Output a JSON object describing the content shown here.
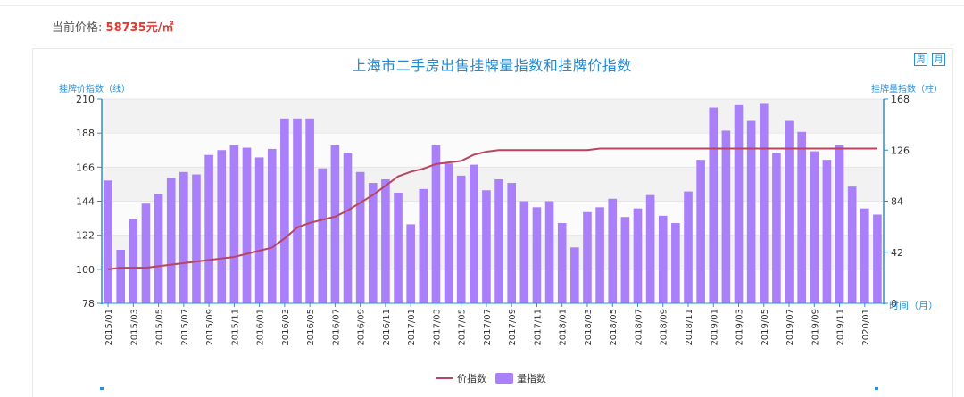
{
  "price": {
    "label": "当前价格:",
    "value": "58735元/㎡"
  },
  "period_buttons": [
    "周",
    "月"
  ],
  "colors": {
    "bar": "#a97ffa",
    "line": "#b84562",
    "axis": "#2a8fd8",
    "title": "#1f8ad6",
    "price": "#e8382f"
  },
  "chart_data": {
    "type": "bar+line",
    "title": "上海市二手房出售挂牌量指数和挂牌价指数",
    "y_left_label": "挂牌价指数（线）",
    "y_right_label": "挂牌量指数（柱）",
    "x_axis_label": "时间（月）",
    "y_left_ticks": [
      78,
      100,
      122,
      144,
      166,
      188,
      210
    ],
    "y_right_ticks": [
      0,
      42,
      84,
      126,
      168
    ],
    "y_left_range": [
      78,
      210
    ],
    "y_right_range": [
      0,
      168
    ],
    "x_tick_labels": [
      "2015/01",
      "2015/03",
      "2015/05",
      "2015/07",
      "2015/09",
      "2015/11",
      "2016/01",
      "2016/03",
      "2016/05",
      "2016/07",
      "2016/09",
      "2016/11",
      "2017/01",
      "2017/03",
      "2017/05",
      "2017/07",
      "2017/09",
      "2017/11",
      "2018/01",
      "2018/03",
      "2018/05",
      "2018/07",
      "2018/09",
      "2018/11",
      "2019/01",
      "2019/03",
      "2019/05",
      "2019/07",
      "2019/09",
      "2019/11",
      "2020/01"
    ],
    "months": [
      "2015/01",
      "2015/02",
      "2015/03",
      "2015/04",
      "2015/05",
      "2015/06",
      "2015/07",
      "2015/08",
      "2015/09",
      "2015/10",
      "2015/11",
      "2015/12",
      "2016/01",
      "2016/02",
      "2016/03",
      "2016/04",
      "2016/05",
      "2016/06",
      "2016/07",
      "2016/08",
      "2016/09",
      "2016/10",
      "2016/11",
      "2016/12",
      "2017/01",
      "2017/02",
      "2017/03",
      "2017/04",
      "2017/05",
      "2017/06",
      "2017/07",
      "2017/08",
      "2017/09",
      "2017/10",
      "2017/11",
      "2017/12",
      "2018/01",
      "2018/02",
      "2018/03",
      "2018/04",
      "2018/05",
      "2018/06",
      "2018/07",
      "2018/08",
      "2018/09",
      "2018/10",
      "2018/11",
      "2018/12",
      "2019/01",
      "2019/02",
      "2019/03",
      "2019/04",
      "2019/05",
      "2019/06",
      "2019/07",
      "2019/08",
      "2019/09",
      "2019/10",
      "2019/11",
      "2019/12",
      "2020/01",
      "2020/02"
    ],
    "series": [
      {
        "name": "量指数",
        "kind": "bar",
        "axis": "right",
        "values": [
          101,
          44,
          69,
          82,
          90,
          103,
          108,
          106,
          122,
          126,
          130,
          128,
          120,
          127,
          152,
          152,
          152,
          111,
          130,
          124,
          108,
          99,
          102,
          91,
          65,
          94,
          130,
          115,
          105,
          114,
          93,
          102,
          99,
          84,
          79,
          84,
          66,
          46,
          75,
          79,
          86,
          71,
          78,
          89,
          72,
          66,
          92,
          118,
          161,
          142,
          163,
          150,
          164,
          124,
          150,
          141,
          125,
          118,
          130,
          96,
          78,
          73
        ]
      },
      {
        "name": "价指数",
        "kind": "line",
        "axis": "left",
        "values": [
          100,
          101,
          101,
          101,
          102,
          103,
          104,
          105,
          106,
          107,
          108,
          110,
          112,
          114,
          120,
          127,
          130,
          132,
          134,
          138,
          143,
          148,
          154,
          160,
          163,
          165,
          168,
          169,
          170,
          174,
          176,
          177,
          177,
          177,
          177,
          177,
          177,
          177,
          177,
          178,
          178,
          178,
          178,
          178,
          178,
          178,
          178,
          178,
          178,
          178,
          178,
          178,
          178,
          178,
          178,
          178,
          178,
          178,
          178,
          178,
          178,
          178
        ]
      }
    ],
    "legend": [
      "价指数",
      "量指数"
    ],
    "grid": true,
    "legend_position": "bottom-center"
  }
}
